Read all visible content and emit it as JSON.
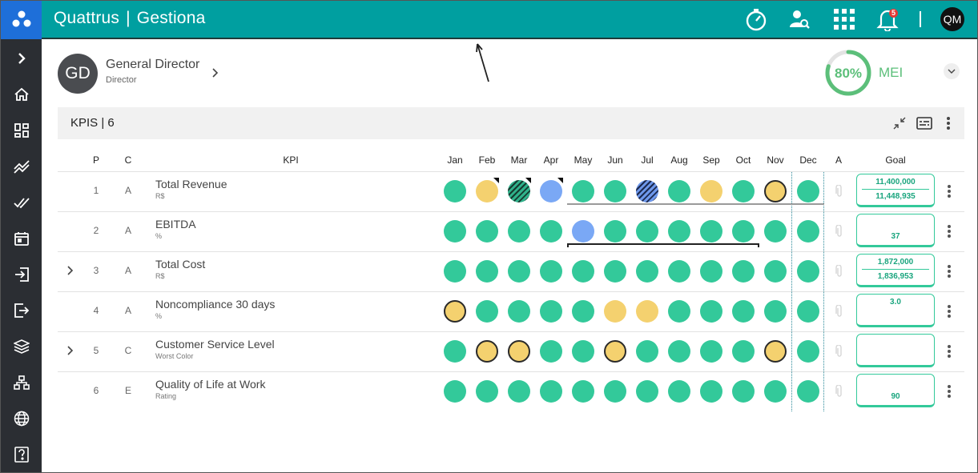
{
  "app": {
    "brand": "Quattrus",
    "module": "Gestiona"
  },
  "topbar": {
    "notification_count": "5",
    "user_initials": "QM"
  },
  "person": {
    "initials": "GD",
    "name": "General Director",
    "role": "Director"
  },
  "mei": {
    "percent_label": "80%",
    "percent_value": 80,
    "label": "MEI",
    "ring_color": "#5cbf7a"
  },
  "panel": {
    "title": "KPIS | 6"
  },
  "columns": {
    "p": "P",
    "c": "C",
    "kpi": "KPI",
    "a": "A",
    "goal": "Goal",
    "months": [
      "Jan",
      "Feb",
      "Mar",
      "Apr",
      "May",
      "Jun",
      "Jul",
      "Aug",
      "Sep",
      "Oct",
      "Nov",
      "Dec"
    ]
  },
  "colors": {
    "green": "#33c99a",
    "yellow": "#f4d16f",
    "blue": "#7aa8f5",
    "teal_bar": "#009fa0",
    "sidebar": "#2b2e33"
  },
  "rows": [
    {
      "p": "1",
      "c": "A",
      "name": "Total Revenue",
      "unit": "R$",
      "expandable": false,
      "goal_top": "11,400,000",
      "goal_bottom": "11,448,935",
      "statuses": [
        "green",
        "yellow",
        "hatch-green",
        "blue",
        "green",
        "green",
        "hatch-blue",
        "green",
        "yellow",
        "green",
        "yellow-outlined",
        "green"
      ],
      "flags": [
        false,
        true,
        true,
        true,
        false,
        false,
        false,
        false,
        false,
        false,
        false,
        false
      ]
    },
    {
      "p": "2",
      "c": "A",
      "name": "EBITDA",
      "unit": "%",
      "expandable": false,
      "goal_top": "",
      "goal_bottom": "37",
      "statuses": [
        "green",
        "green",
        "green",
        "green",
        "blue",
        "green",
        "green",
        "green",
        "green",
        "green",
        "green",
        "green"
      ],
      "flags": [
        false,
        false,
        false,
        false,
        false,
        false,
        false,
        false,
        false,
        false,
        false,
        false
      ]
    },
    {
      "p": "3",
      "c": "A",
      "name": "Total Cost",
      "unit": "R$",
      "expandable": true,
      "goal_top": "1,872,000",
      "goal_bottom": "1,836,953",
      "statuses": [
        "green",
        "green",
        "green",
        "green",
        "green",
        "green",
        "green",
        "green",
        "green",
        "green",
        "green",
        "green"
      ],
      "flags": [
        false,
        false,
        false,
        false,
        false,
        false,
        false,
        false,
        false,
        false,
        false,
        false
      ]
    },
    {
      "p": "4",
      "c": "A",
      "name": "Noncompliance 30 days",
      "unit": "%",
      "expandable": false,
      "goal_top": "3.0",
      "goal_bottom": "",
      "statuses": [
        "yellow-outlined",
        "green",
        "green",
        "green",
        "green",
        "yellow",
        "yellow",
        "green",
        "green",
        "green",
        "green",
        "green"
      ],
      "flags": [
        false,
        false,
        false,
        false,
        false,
        false,
        false,
        false,
        false,
        false,
        false,
        false
      ]
    },
    {
      "p": "5",
      "c": "C",
      "name": "Customer Service Level",
      "unit": "Worst Color",
      "expandable": true,
      "goal_top": "",
      "goal_bottom": "",
      "statuses": [
        "green",
        "yellow-outlined",
        "yellow-outlined",
        "green",
        "green",
        "yellow-outlined",
        "green",
        "green",
        "green",
        "green",
        "yellow-outlined",
        "green"
      ],
      "flags": [
        false,
        false,
        false,
        false,
        false,
        false,
        false,
        false,
        false,
        false,
        false,
        false
      ]
    },
    {
      "p": "6",
      "c": "E",
      "name": "Quality of Life at Work",
      "unit": "Rating",
      "expandable": false,
      "goal_top": "",
      "goal_bottom": "90",
      "statuses": [
        "green",
        "green",
        "green",
        "green",
        "green",
        "green",
        "green",
        "green",
        "green",
        "green",
        "green",
        "green"
      ],
      "flags": [
        false,
        false,
        false,
        false,
        false,
        false,
        false,
        false,
        false,
        false,
        false,
        false
      ]
    }
  ]
}
